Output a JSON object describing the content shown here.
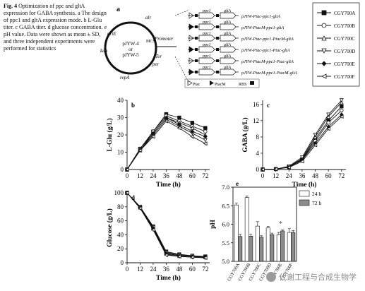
{
  "caption": {
    "fig": "Fig. 4",
    "text": " Optimization of ppc and gltA expression for GABA synthesis. a The design of ppc1 and gltA expression mode. b L-Glu titer. c GABA titer. d glucose concentration. e pH value. Data were shown as mean ± SD, and three independent experiments were performed for statistics"
  },
  "panel_a": {
    "label": "a",
    "plasmid_center": [
      "pJYW-4",
      "or",
      "pJYW-5"
    ],
    "plasmid_features": [
      "alr",
      "oriE",
      "kan",
      "repA",
      "MCS",
      "per",
      "Ter"
    ],
    "promoter_label": "Promoter",
    "constructs": [
      {
        "genes": [
          "ppc1",
          "gltA"
        ],
        "name": "pJYW-Ptac-ppc1-gltA"
      },
      {
        "genes": [
          "ppc1",
          "gltA"
        ],
        "name": "pJYW-PtacM-ppc1-gltA"
      },
      {
        "genes": [
          "ppc1",
          "gltA"
        ],
        "name": "pJYW-Ptac-ppc1-PtacM-gltA"
      },
      {
        "genes": [
          "ppc1",
          "gltA"
        ],
        "name": "pJYW-Ptac-ppc1-Ptac-gltA"
      },
      {
        "genes": [
          "ppc1",
          "gltA"
        ],
        "name": "pJYW-PtacM-ppc1-Ptac-gltA"
      },
      {
        "genes": [
          "ppc1",
          "gltA"
        ],
        "name": "pJYW-PtacM-ppc1-PtacM-gltA"
      }
    ],
    "key": [
      "Ptac",
      "PtacM",
      "RBS"
    ]
  },
  "legend": {
    "items": [
      {
        "name": "CGY700A",
        "marker": "square-filled"
      },
      {
        "name": "CGY700B",
        "marker": "circle-open"
      },
      {
        "name": "CGY700C",
        "marker": "triangle-up-open"
      },
      {
        "name": "CGY700D",
        "marker": "triangle-down-open"
      },
      {
        "name": "CGY700E",
        "marker": "diamond-filled"
      },
      {
        "name": "CGY700F",
        "marker": "triangle-left-open"
      }
    ]
  },
  "chart_data": [
    {
      "id": "b",
      "label": "b",
      "type": "line",
      "xlabel": "Time (h)",
      "ylabel": "L-Glu (g/L)",
      "x": [
        0,
        12,
        24,
        36,
        48,
        60,
        72
      ],
      "xlim": [
        0,
        76
      ],
      "ylim": [
        0,
        40
      ],
      "xticks": [
        0,
        12,
        24,
        36,
        48,
        60,
        72
      ],
      "yticks": [
        0,
        10,
        20,
        30,
        40
      ],
      "series": [
        {
          "name": "CGY700A",
          "values": [
            0,
            12,
            22,
            32,
            30,
            27,
            24
          ]
        },
        {
          "name": "CGY700B",
          "values": [
            0,
            12,
            22,
            31,
            28,
            25,
            22
          ]
        },
        {
          "name": "CGY700C",
          "values": [
            0,
            12,
            21,
            30,
            27,
            24,
            20
          ]
        },
        {
          "name": "CGY700D",
          "values": [
            0,
            11,
            20,
            29,
            25,
            21,
            17
          ]
        },
        {
          "name": "CGY700E",
          "values": [
            0,
            11,
            21,
            30,
            26,
            22,
            19
          ]
        },
        {
          "name": "CGY700F",
          "values": [
            0,
            11,
            19,
            28,
            24,
            19,
            15
          ]
        }
      ]
    },
    {
      "id": "c",
      "label": "c",
      "type": "line",
      "xlabel": "Time (h)",
      "ylabel": "GABA (g/L)",
      "x": [
        0,
        12,
        24,
        36,
        48,
        60,
        72
      ],
      "xlim": [
        0,
        76
      ],
      "ylim": [
        0,
        17
      ],
      "xticks": [
        0,
        12,
        24,
        36,
        48,
        60,
        72
      ],
      "yticks": [
        0,
        4,
        8,
        12,
        16
      ],
      "series": [
        {
          "name": "CGY700A",
          "values": [
            0,
            0.1,
            0.6,
            2.5,
            7.5,
            12,
            15.5
          ]
        },
        {
          "name": "CGY700B",
          "values": [
            0,
            0.1,
            0.6,
            2.4,
            7,
            11.5,
            14.5
          ]
        },
        {
          "name": "CGY700C",
          "values": [
            0,
            0.1,
            0.7,
            2.7,
            8,
            13,
            16.5
          ]
        },
        {
          "name": "CGY700D",
          "values": [
            0,
            0.1,
            0.8,
            3,
            8.5,
            13.5,
            17
          ]
        },
        {
          "name": "CGY700E",
          "values": [
            0,
            0.1,
            0.6,
            2.3,
            6.5,
            10.5,
            13.5
          ]
        },
        {
          "name": "CGY700F",
          "values": [
            0,
            0.1,
            0.5,
            2,
            6,
            10,
            13
          ]
        }
      ]
    },
    {
      "id": "d",
      "label": "d",
      "type": "line",
      "xlabel": "Time (h)",
      "ylabel": "Glucose (g/L)",
      "x": [
        0,
        12,
        24,
        36,
        48,
        60,
        72
      ],
      "xlim": [
        0,
        76
      ],
      "ylim": [
        0,
        100
      ],
      "xticks": [
        0,
        12,
        24,
        36,
        48,
        60,
        72
      ],
      "yticks": [
        0,
        20,
        40,
        60,
        80,
        100
      ],
      "series": [
        {
          "name": "CGY700A",
          "values": [
            100,
            80,
            52,
            16,
            12,
            10,
            9
          ]
        },
        {
          "name": "CGY700B",
          "values": [
            100,
            80,
            51,
            15,
            11,
            10,
            8
          ]
        },
        {
          "name": "CGY700C",
          "values": [
            100,
            79,
            50,
            14,
            10,
            9,
            8
          ]
        },
        {
          "name": "CGY700D",
          "values": [
            100,
            78,
            48,
            12,
            9,
            8,
            7
          ]
        },
        {
          "name": "CGY700E",
          "values": [
            100,
            79,
            49,
            13,
            10,
            9,
            8
          ]
        },
        {
          "name": "CGY700F",
          "values": [
            100,
            78,
            47,
            11,
            9,
            8,
            7
          ]
        }
      ]
    },
    {
      "id": "e",
      "label": "e",
      "type": "bar",
      "ylabel": "pH",
      "ylim": [
        5.0,
        7.0
      ],
      "yticks": [
        5.0,
        5.5,
        6.0,
        6.5,
        7.0
      ],
      "categories": [
        "CGY700A",
        "CGY700B",
        "CGY700C",
        "CGY700D",
        "CGY700E",
        "CGY700F"
      ],
      "series": [
        {
          "name": "24 h",
          "values": [
            6.52,
            6.72,
            5.95,
            5.9,
            5.72,
            5.78
          ],
          "errors": [
            0.05,
            0.04,
            0.12,
            0.04,
            0.06,
            0.1
          ]
        },
        {
          "name": "72 h",
          "values": [
            5.67,
            5.68,
            5.65,
            5.72,
            5.82,
            5.78
          ],
          "errors": [
            0.06,
            0.05,
            0.04,
            0.04,
            0.03,
            0.05
          ]
        }
      ],
      "annotations": [
        "*"
      ]
    }
  ],
  "watermark": "代谢工程与合成生物学"
}
